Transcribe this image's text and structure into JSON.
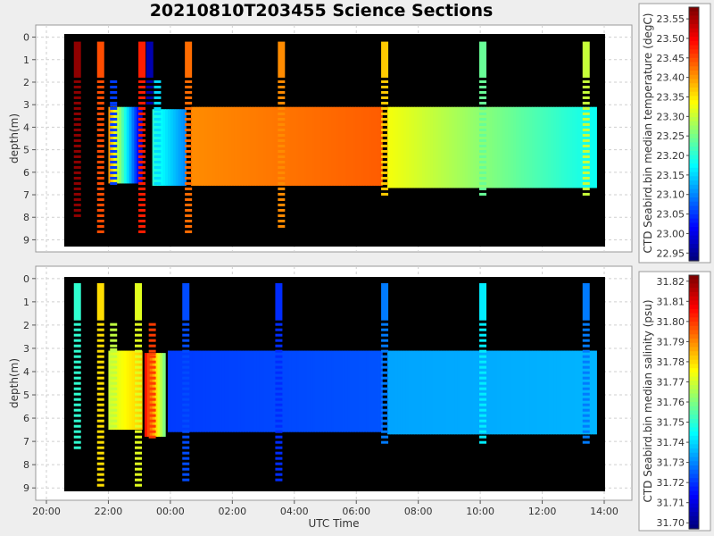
{
  "title": "20210810T203455 Science Sections",
  "chart_data": [
    {
      "type": "heatmap",
      "ylabel": "depth(m)",
      "xlabel": "",
      "colorbar_label": "CTD Seabird.bin median temperature (degC)",
      "colorbar_ticks": [
        "22.95",
        "23.00",
        "23.05",
        "23.10",
        "23.15",
        "23.20",
        "23.25",
        "23.30",
        "23.35",
        "23.40",
        "23.45",
        "23.50",
        "23.55"
      ],
      "colorbar_range": [
        22.93,
        23.58
      ],
      "y_ticks": [
        "0",
        "1",
        "2",
        "3",
        "4",
        "5",
        "6",
        "7",
        "8",
        "9"
      ],
      "ylim": [
        9.3,
        -0.3
      ],
      "xlim_hours_utc": [
        "20:00",
        "14:20"
      ],
      "grid": true,
      "profiles": [
        {
          "time": "21:00",
          "d0": 0.2,
          "d1": 8.0,
          "value": 23.57
        },
        {
          "time": "21:45",
          "d0": 0.2,
          "d1": 8.8,
          "value": 23.45
        },
        {
          "time": "22:10",
          "d0": 3.0,
          "d1": 6.5,
          "value": 23.05
        },
        {
          "time": "23:05",
          "d0": 0.2,
          "d1": 8.7,
          "value": 23.48
        },
        {
          "time": "23:20",
          "d0": 0.2,
          "d1": 3.0,
          "value": 22.96
        },
        {
          "time": "23:35",
          "d0": 3.2,
          "d1": 6.6,
          "value": 23.15
        },
        {
          "time": "00:35",
          "d0": 0.2,
          "d1": 8.8,
          "value": 23.43
        },
        {
          "time": "03:35",
          "d0": 0.2,
          "d1": 8.5,
          "value": 23.41
        },
        {
          "time": "06:55",
          "d0": 0.2,
          "d1": 7.0,
          "value": 23.37
        },
        {
          "time": "10:05",
          "d0": 0.2,
          "d1": 7.0,
          "value": 23.24
        },
        {
          "time": "13:25",
          "d0": 0.2,
          "d1": 7.0,
          "value": 23.3
        }
      ],
      "bulk": [
        {
          "t0": "22:00",
          "t1": "23:05",
          "d0": 3.1,
          "d1": 6.5,
          "from": 23.4,
          "to": 22.98
        },
        {
          "t0": "23:25",
          "t1": "00:30",
          "d0": 3.2,
          "d1": 6.6,
          "from": 23.2,
          "to": 23.1
        },
        {
          "t0": "00:40",
          "t1": "06:50",
          "d0": 3.1,
          "d1": 6.6,
          "from": 23.41,
          "to": 23.44
        },
        {
          "t0": "07:00",
          "t1": "13:45",
          "d0": 3.1,
          "d1": 6.7,
          "from": 23.33,
          "to": 23.18
        }
      ]
    },
    {
      "type": "heatmap",
      "ylabel": "depth(m)",
      "xlabel": "UTC Time",
      "colorbar_label": "CTD Seabird.bin median salinity (psu)",
      "colorbar_ticks": [
        "31.70",
        "31.71",
        "31.72",
        "31.73",
        "31.74",
        "31.75",
        "31.76",
        "31.77",
        "31.78",
        "31.79",
        "31.80",
        "31.81",
        "31.82"
      ],
      "colorbar_range": [
        31.697,
        31.823
      ],
      "y_ticks": [
        "0",
        "1",
        "2",
        "3",
        "4",
        "5",
        "6",
        "7",
        "8",
        "9"
      ],
      "x_ticks": [
        "20:00",
        "22:00",
        "00:00",
        "02:00",
        "04:00",
        "06:00",
        "08:00",
        "10:00",
        "12:00",
        "14:00"
      ],
      "ylim": [
        9.3,
        -0.3
      ],
      "xlim_hours_utc": [
        "20:00",
        "14:20"
      ],
      "grid": true,
      "profiles": [
        {
          "time": "21:00",
          "d0": 0.2,
          "d1": 7.3,
          "value": 31.75
        },
        {
          "time": "21:45",
          "d0": 0.2,
          "d1": 9.0,
          "value": 31.78
        },
        {
          "time": "22:10",
          "d0": 3.0,
          "d1": 6.5,
          "value": 31.768
        },
        {
          "time": "22:58",
          "d0": 0.2,
          "d1": 9.0,
          "value": 31.772
        },
        {
          "time": "23:25",
          "d0": 3.2,
          "d1": 6.8,
          "value": 31.8
        },
        {
          "time": "00:30",
          "d0": 0.2,
          "d1": 8.8,
          "value": 31.722
        },
        {
          "time": "03:30",
          "d0": 0.2,
          "d1": 8.6,
          "value": 31.718
        },
        {
          "time": "06:55",
          "d0": 0.2,
          "d1": 7.0,
          "value": 31.728
        },
        {
          "time": "10:05",
          "d0": 0.2,
          "d1": 7.0,
          "value": 31.742
        },
        {
          "time": "13:25",
          "d0": 0.2,
          "d1": 7.0,
          "value": 31.728
        }
      ],
      "bulk": [
        {
          "t0": "22:00",
          "t1": "23:05",
          "d0": 3.1,
          "d1": 6.5,
          "from": 31.77,
          "to": 31.782
        },
        {
          "t0": "23:10",
          "t1": "23:50",
          "d0": 3.2,
          "d1": 6.8,
          "from": 31.805,
          "to": 31.76
        },
        {
          "t0": "23:55",
          "t1": "06:50",
          "d0": 3.1,
          "d1": 6.6,
          "from": 31.72,
          "to": 31.723
        },
        {
          "t0": "07:00",
          "t1": "13:45",
          "d0": 3.1,
          "d1": 6.7,
          "from": 31.733,
          "to": 31.735
        }
      ]
    }
  ]
}
